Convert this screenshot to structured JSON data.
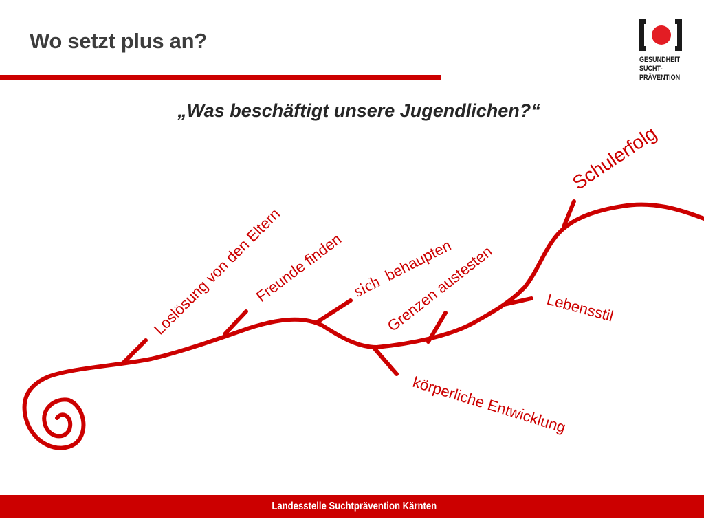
{
  "slide": {
    "title": "Wo setzt plus an?",
    "subtitle": "„Was beschäftigt unsere Jugendlichen?“"
  },
  "logo": {
    "lines": [
      "GESUNDHEIT",
      "SUCHT-",
      "PRÄVENTION"
    ],
    "bracket_color": "#1a1a1a",
    "dot_color": "#e31d24"
  },
  "diagram": {
    "line_color": "#cc0000",
    "labels": {
      "loslosung": "Loslösung von den Eltern",
      "freunde": "Freunde finden",
      "sich": "sich",
      "behaupten": "behaupten",
      "grenzen": "Grenzen austesten",
      "schulerfolg": "Schulerfolg",
      "lebensstil": "Lebensstil",
      "koerperlich": "körperliche Entwicklung"
    }
  },
  "footer": {
    "text": "Landesstelle Suchtprävention Kärnten",
    "color": "#cc0000"
  }
}
